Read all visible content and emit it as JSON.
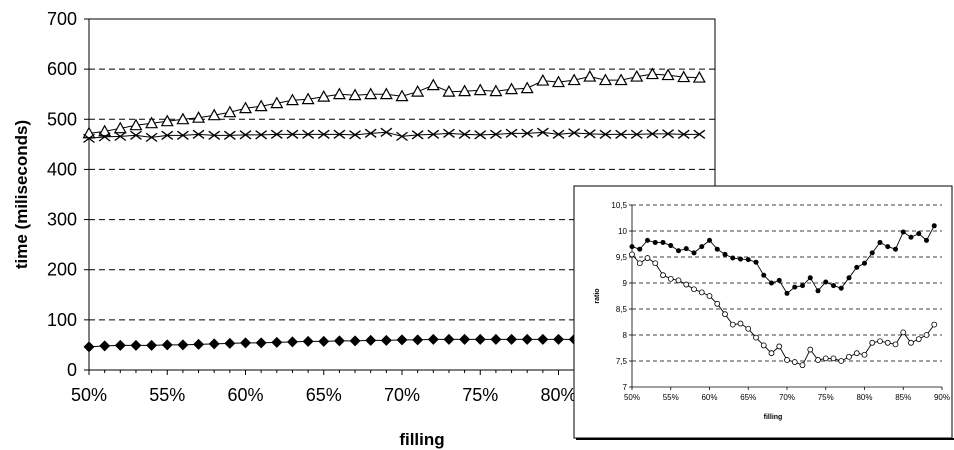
{
  "chart_data": [
    {
      "type": "line",
      "title": "",
      "xlabel": "filling",
      "ylabel": "time (miliseconds)",
      "xlim": [
        50,
        90
      ],
      "ylim": [
        0,
        700
      ],
      "yticks": [
        0,
        100,
        200,
        300,
        400,
        500,
        600,
        700
      ],
      "xticks": [
        50,
        55,
        60,
        65,
        70,
        75,
        80
      ],
      "xtick_labels": [
        "50%",
        "55%",
        "60%",
        "65%",
        "70%",
        "75%",
        "80%"
      ],
      "grid": "horizontal dashed",
      "legend": "none",
      "x": [
        50,
        51,
        52,
        53,
        54,
        55,
        56,
        57,
        58,
        59,
        60,
        61,
        62,
        63,
        64,
        65,
        66,
        67,
        68,
        69,
        70,
        71,
        72,
        73,
        74,
        75,
        76,
        77,
        78,
        79,
        80,
        81,
        82,
        83,
        84,
        85,
        86,
        87,
        88,
        89
      ],
      "series": [
        {
          "marker": "triangle-open",
          "values": [
            472,
            476,
            482,
            488,
            492,
            496,
            500,
            503,
            508,
            514,
            522,
            526,
            532,
            538,
            540,
            545,
            550,
            548,
            550,
            550,
            546,
            555,
            568,
            555,
            556,
            558,
            556,
            560,
            562,
            577,
            574,
            578,
            585,
            578,
            578,
            585,
            590,
            588,
            584,
            583
          ]
        },
        {
          "marker": "x",
          "values": [
            462,
            465,
            466,
            468,
            464,
            468,
            468,
            470,
            468,
            468,
            469,
            469,
            470,
            470,
            470,
            470,
            470,
            469,
            472,
            474,
            466,
            469,
            470,
            472,
            470,
            469,
            470,
            472,
            472,
            474,
            470,
            473,
            471,
            470,
            470,
            470,
            471,
            471,
            470,
            470
          ]
        },
        {
          "marker": "diamond-filled",
          "values": [
            46,
            48,
            49,
            49,
            49,
            50,
            50,
            51,
            52,
            53,
            54,
            54,
            55,
            56,
            57,
            57,
            58,
            58,
            59,
            59,
            60,
            60,
            61,
            61,
            61,
            61,
            61,
            61,
            61,
            61,
            61,
            61,
            61,
            61,
            61,
            61,
            61,
            61,
            61,
            61
          ]
        }
      ]
    },
    {
      "type": "line",
      "title": "",
      "xlabel": "filling",
      "ylabel": "ratio",
      "xlim": [
        50,
        90
      ],
      "ylim": [
        7,
        10.5
      ],
      "yticks": [
        7,
        7.5,
        8,
        8.5,
        9,
        9.5,
        10,
        10.5
      ],
      "ytick_labels": [
        "7",
        "7,5",
        "8",
        "8,5",
        "9",
        "9,5",
        "10",
        "10,5"
      ],
      "xticks": [
        50,
        55,
        60,
        65,
        70,
        75,
        80,
        85,
        90
      ],
      "xtick_labels": [
        "50%",
        "55%",
        "60%",
        "65%",
        "70%",
        "75%",
        "80%",
        "85%",
        "90%"
      ],
      "grid": "horizontal dashed",
      "legend": "none",
      "x": [
        50,
        51,
        52,
        53,
        54,
        55,
        56,
        57,
        58,
        59,
        60,
        61,
        62,
        63,
        64,
        65,
        66,
        67,
        68,
        69,
        70,
        71,
        72,
        73,
        74,
        75,
        76,
        77,
        78,
        79,
        80,
        81,
        82,
        83,
        84,
        85,
        86,
        87,
        88,
        89
      ],
      "series": [
        {
          "marker": "circle-filled",
          "values": [
            9.7,
            9.65,
            9.82,
            9.78,
            9.78,
            9.72,
            9.62,
            9.66,
            9.58,
            9.7,
            9.82,
            9.65,
            9.55,
            9.48,
            9.46,
            9.45,
            9.4,
            9.15,
            9.0,
            9.05,
            8.8,
            8.92,
            8.95,
            9.1,
            8.85,
            9.02,
            8.95,
            8.9,
            9.1,
            9.3,
            9.38,
            9.58,
            9.78,
            9.7,
            9.65,
            9.98,
            9.88,
            9.95,
            9.82,
            10.1
          ]
        },
        {
          "marker": "circle-open",
          "values": [
            9.55,
            9.38,
            9.48,
            9.38,
            9.15,
            9.08,
            9.05,
            8.97,
            8.88,
            8.82,
            8.75,
            8.6,
            8.4,
            8.2,
            8.22,
            8.12,
            7.95,
            7.8,
            7.65,
            7.78,
            7.52,
            7.48,
            7.42,
            7.72,
            7.52,
            7.55,
            7.55,
            7.5,
            7.58,
            7.65,
            7.62,
            7.85,
            7.88,
            7.85,
            7.82,
            8.05,
            7.85,
            7.92,
            8.0,
            8.2
          ]
        }
      ]
    }
  ]
}
